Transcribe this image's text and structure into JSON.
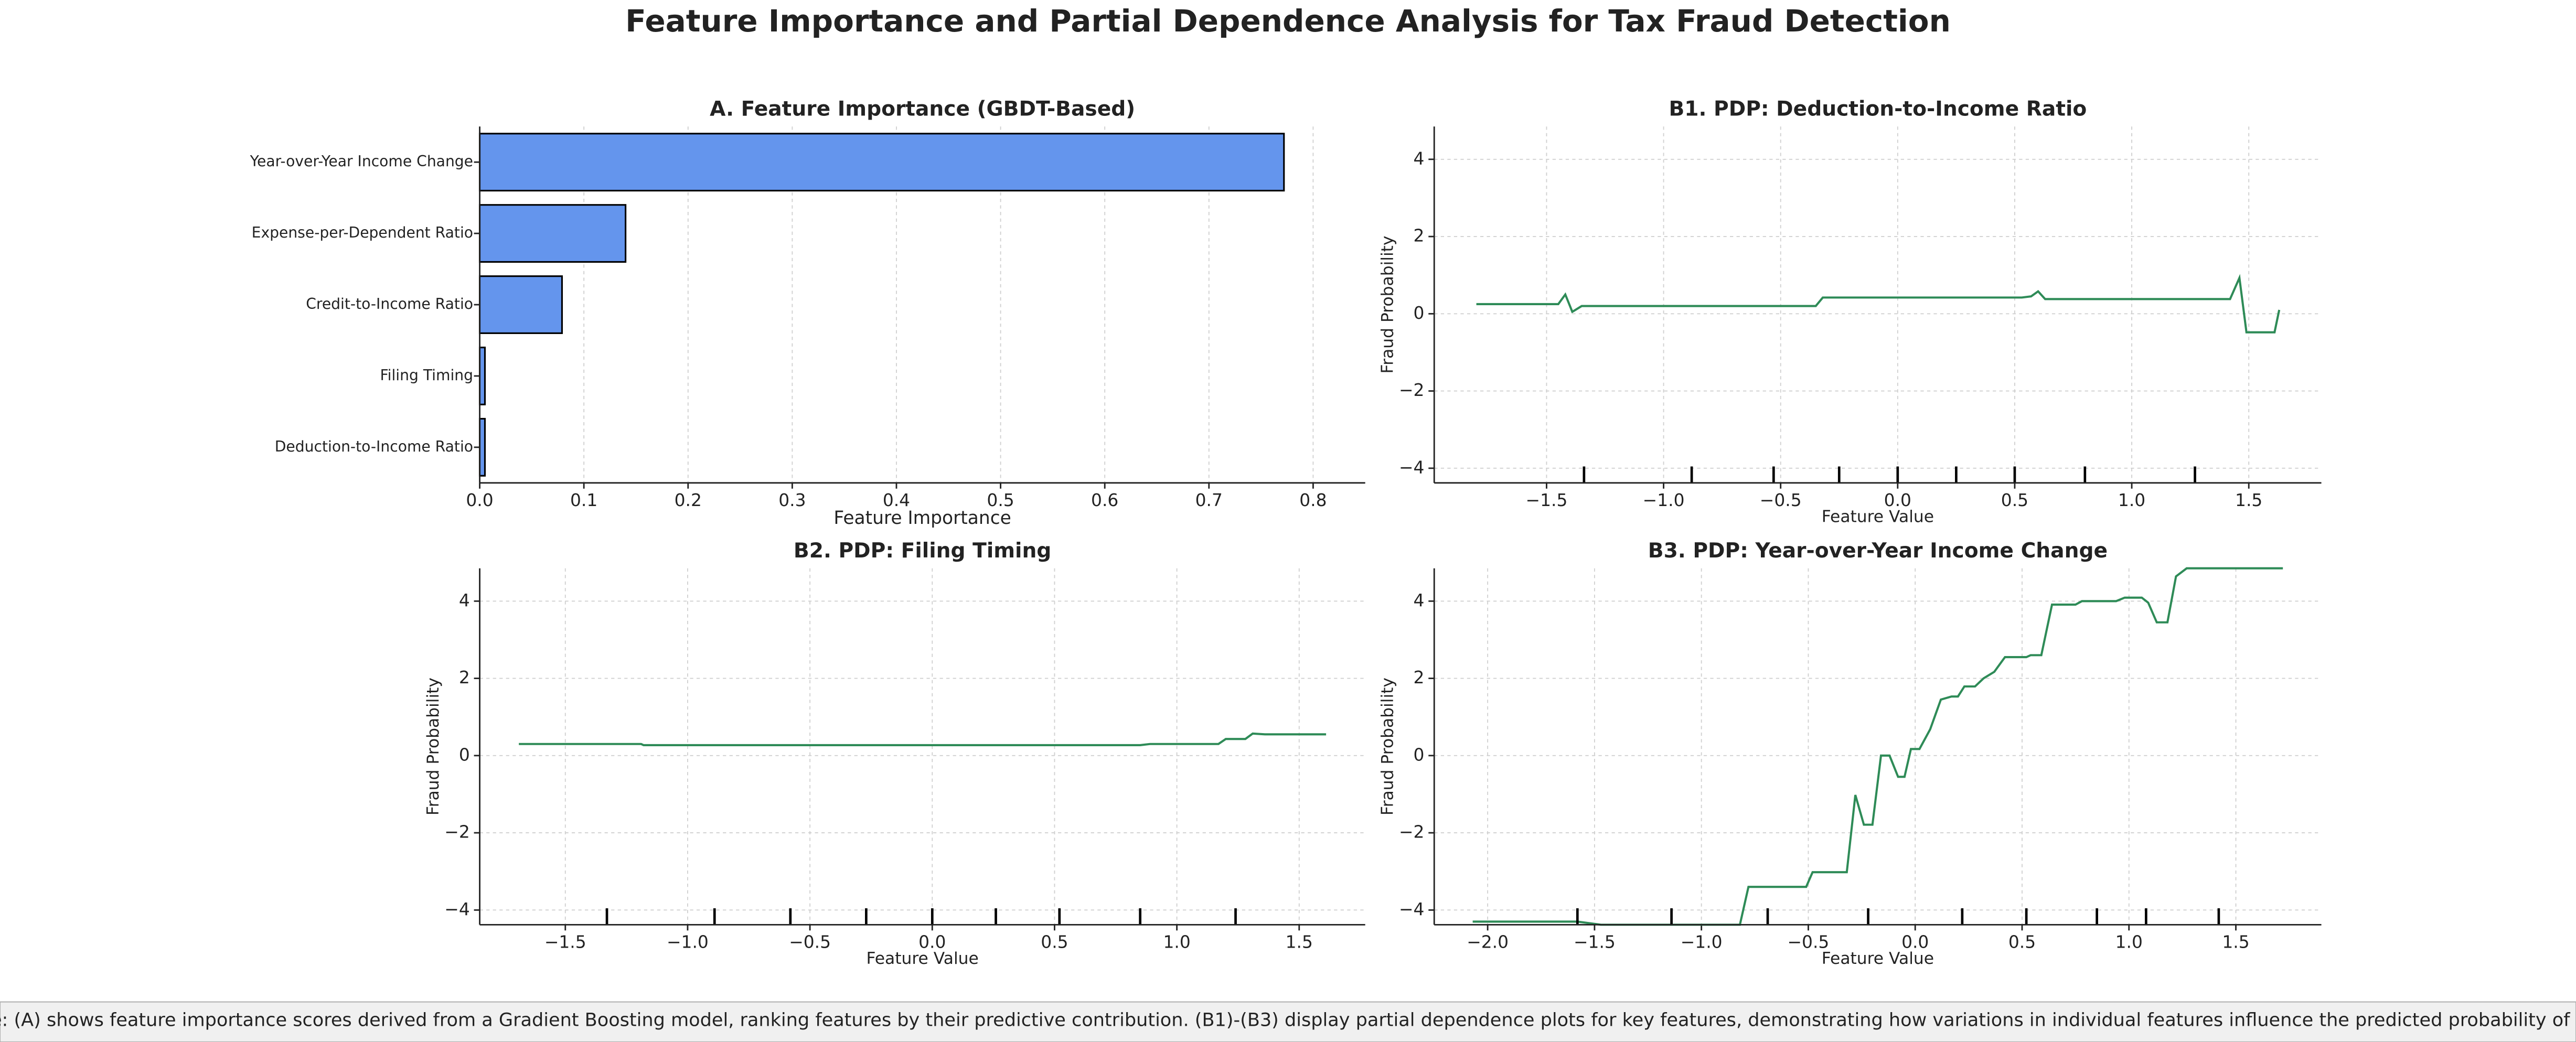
{
  "title": "Feature Importance and Partial Dependence Analysis for Tax Fraud Detection",
  "caption": "Figure: (A) shows feature importance scores derived from a Gradient Boosting model, ranking features by their predictive contribution. (B1)-(B3) display partial dependence plots for key features, demonstrating how variations in individual features influence the predicted probability of fraud.",
  "chart_data": [
    {
      "type": "barh",
      "title": "A. Feature Importance (GBDT-Based)",
      "xlabel": "Feature Importance",
      "categories": [
        "Year-over-Year Income Change",
        "Expense-per-Dependent Ratio",
        "Credit-to-Income Ratio",
        "Filing Timing",
        "Deduction-to-Income Ratio"
      ],
      "values": [
        0.772,
        0.14,
        0.079,
        0.005,
        0.005
      ],
      "color": "#6495ed",
      "edgecolor": "#000000",
      "xlim": [
        0,
        0.85
      ],
      "xticks": [
        {
          "value": 0,
          "label": "0.0"
        },
        0.1,
        0.2,
        0.3,
        0.4,
        0.5,
        0.6,
        0.7,
        0.8
      ],
      "grid": true
    },
    {
      "type": "line",
      "title": "B1. PDP: Deduction-to-Income Ratio",
      "xlabel": "Feature Value",
      "ylabel": "Fraud Probability",
      "x": [
        -1.8,
        -1.45,
        -1.42,
        -1.39,
        -1.35,
        -0.35,
        -0.32,
        0.53,
        0.57,
        0.6,
        0.63,
        1.42,
        1.46,
        1.49,
        1.61,
        1.63
      ],
      "values": [
        0.25,
        0.25,
        0.5,
        0.05,
        0.2,
        0.2,
        0.42,
        0.42,
        0.45,
        0.58,
        0.38,
        0.38,
        0.93,
        -0.48,
        -0.48,
        0.1
      ],
      "color": "#2e8b57",
      "rug": [
        -1.34,
        -0.88,
        -0.53,
        -0.25,
        0.0,
        0.25,
        0.5,
        0.8,
        1.27
      ],
      "rug_color": "#000000",
      "xlim": [
        -1.98,
        1.81
      ],
      "ylim": [
        -4.38,
        4.85
      ],
      "xticks": [
        {
          "value": -1.5,
          "label": "−1.5"
        },
        {
          "value": -1,
          "label": "−1.0"
        },
        {
          "value": -0.5,
          "label": "−0.5"
        },
        {
          "value": 0,
          "label": "0.0"
        },
        0.5,
        {
          "value": 1,
          "label": "1.0"
        },
        1.5
      ],
      "yticks": [
        {
          "value": -4,
          "label": "−4"
        },
        {
          "value": -2,
          "label": "−2"
        },
        0,
        2,
        4
      ],
      "grid": true
    },
    {
      "type": "line",
      "title": "B2. PDP: Filing Timing",
      "xlabel": "Feature Value",
      "ylabel": "Fraud Probability",
      "x": [
        -1.69,
        -1.19,
        -1.18,
        0.85,
        0.89,
        1.17,
        1.2,
        1.28,
        1.31,
        1.36,
        1.61
      ],
      "values": [
        0.3,
        0.3,
        0.27,
        0.27,
        0.3,
        0.3,
        0.43,
        0.43,
        0.57,
        0.55,
        0.55
      ],
      "color": "#2e8b57",
      "rug": [
        -1.33,
        -0.89,
        -0.58,
        -0.27,
        0.0,
        0.26,
        0.52,
        0.85,
        1.24
      ],
      "rug_color": "#000000",
      "xlim": [
        -1.85,
        1.77
      ],
      "ylim": [
        -4.38,
        4.85
      ],
      "xticks": [
        {
          "value": -1.5,
          "label": "−1.5"
        },
        {
          "value": -1,
          "label": "−1.0"
        },
        {
          "value": -0.5,
          "label": "−0.5"
        },
        {
          "value": 0,
          "label": "0.0"
        },
        0.5,
        {
          "value": 1,
          "label": "1.0"
        },
        1.5
      ],
      "yticks": [
        {
          "value": -4,
          "label": "−4"
        },
        {
          "value": -2,
          "label": "−2"
        },
        0,
        2,
        4
      ],
      "grid": true
    },
    {
      "type": "line",
      "title": "B3. PDP: Year-over-Year Income Change",
      "xlabel": "Feature Value",
      "ylabel": "Fraud Probability",
      "x": [
        -2.07,
        -1.58,
        -1.47,
        -1.28,
        -0.82,
        -0.78,
        -0.51,
        -0.48,
        -0.32,
        -0.28,
        -0.24,
        -0.2,
        -0.16,
        -0.12,
        -0.08,
        -0.05,
        -0.02,
        0.02,
        0.07,
        0.12,
        0.17,
        0.2,
        0.23,
        0.28,
        0.32,
        0.37,
        0.42,
        0.52,
        0.54,
        0.59,
        0.64,
        0.75,
        0.78,
        0.94,
        0.98,
        1.06,
        1.09,
        1.13,
        1.18,
        1.22,
        1.27,
        1.72
      ],
      "values": [
        -4.3,
        -4.3,
        -4.38,
        -4.38,
        -4.38,
        -3.4,
        -3.4,
        -3.02,
        -3.02,
        -1.02,
        -1.79,
        -1.79,
        0.0,
        0.0,
        -0.55,
        -0.55,
        0.17,
        0.17,
        0.68,
        1.45,
        1.53,
        1.53,
        1.79,
        1.79,
        2.0,
        2.17,
        2.55,
        2.55,
        2.6,
        2.6,
        3.91,
        3.91,
        4.0,
        4.0,
        4.09,
        4.09,
        3.96,
        3.45,
        3.45,
        4.64,
        4.85,
        4.85
      ],
      "color": "#2e8b57",
      "rug": [
        -1.58,
        -1.14,
        -0.69,
        -0.22,
        0.22,
        0.52,
        0.85,
        1.08,
        1.42
      ],
      "rug_color": "#000000",
      "xlim": [
        -2.25,
        1.9
      ],
      "ylim": [
        -4.38,
        4.85
      ],
      "xticks": [
        {
          "value": -2,
          "label": "−2.0"
        },
        {
          "value": -1.5,
          "label": "−1.5"
        },
        {
          "value": -1,
          "label": "−1.0"
        },
        {
          "value": -0.5,
          "label": "−0.5"
        },
        {
          "value": 0,
          "label": "0.0"
        },
        0.5,
        {
          "value": 1,
          "label": "1.0"
        },
        1.5
      ],
      "yticks": [
        {
          "value": -4,
          "label": "−4"
        },
        {
          "value": -2,
          "label": "−2"
        },
        0,
        2,
        4
      ],
      "grid": true
    }
  ]
}
